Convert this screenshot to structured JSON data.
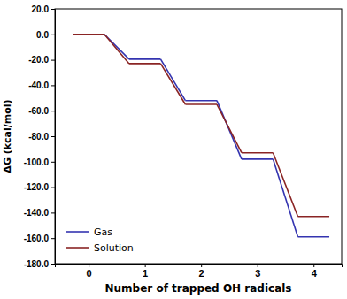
{
  "chart_data": {
    "type": "line",
    "line_style": "step",
    "x_label": "Number of trapped OH radicals",
    "y_label": "ΔG (kcal/mol)",
    "x": [
      0,
      1,
      2,
      3,
      4
    ],
    "xlim": [
      -0.6,
      4.5
    ],
    "xticks": [
      0,
      1,
      2,
      3,
      4
    ],
    "ylim": [
      -180,
      20
    ],
    "yticks": [
      {
        "value": -180,
        "label": "-180.0"
      },
      {
        "value": -160,
        "label": "-160.0"
      },
      {
        "value": -140,
        "label": "-140.0"
      },
      {
        "value": -120,
        "label": "-120.0"
      },
      {
        "value": -100,
        "label": "-100.0"
      },
      {
        "value": -80,
        "label": "-80.0"
      },
      {
        "value": -60,
        "label": "-60.0"
      },
      {
        "value": -40,
        "label": "-40.0"
      },
      {
        "value": -20,
        "label": "-20.0"
      },
      {
        "value": 0,
        "label": "0.0"
      },
      {
        "value": 20,
        "label": "20.0"
      }
    ],
    "grid": false,
    "legend": "lower left",
    "series": [
      {
        "name": "Gas",
        "color": "#3434b0",
        "values": [
          0,
          -19.5,
          -52,
          -98,
          -159
        ]
      },
      {
        "name": "Solution",
        "color": "#8a2424",
        "values": [
          0,
          -23,
          -55,
          -93,
          -143
        ]
      }
    ]
  }
}
